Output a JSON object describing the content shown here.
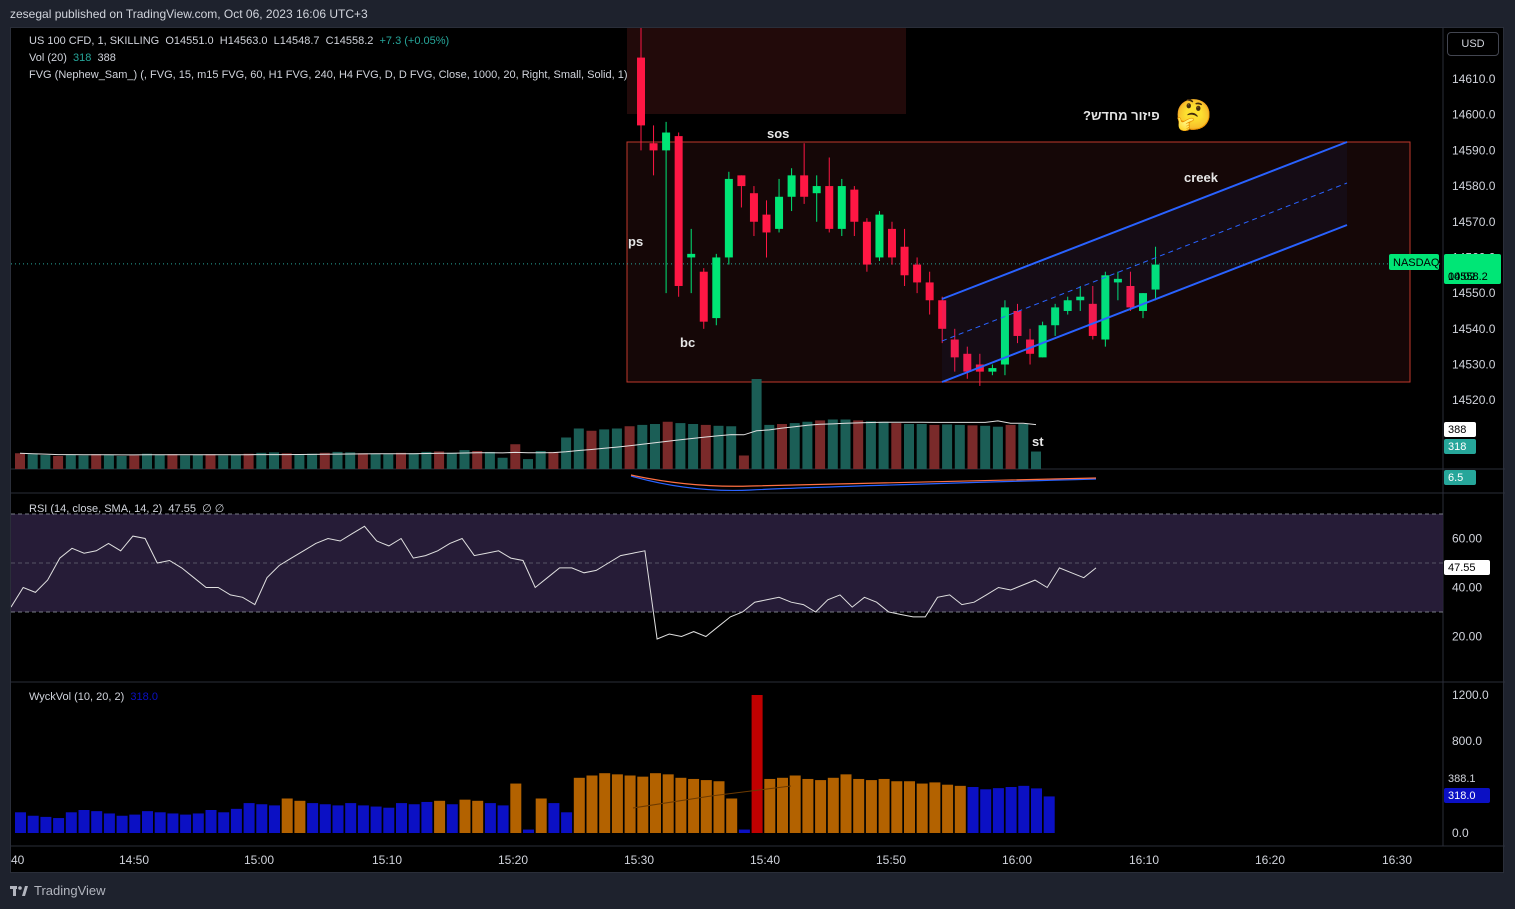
{
  "header": {
    "published": "zesegal published on TradingView.com, Oct 06, 2023 16:06 UTC+3",
    "currency_button": "USD"
  },
  "legend": {
    "symbol": "US 100 CFD, 1, SKILLING",
    "open": "O14551.0",
    "high": "H14563.0",
    "low": "L14548.7",
    "close": "C14558.2",
    "change": "+7.3 (+0.05%)",
    "vol_label": "Vol (20)",
    "vol_value_1": "318",
    "vol_value_2": "388",
    "fvg_label": "FVG (Nephew_Sam_) (, FVG, 15, m15 FVG, 60, H1 FVG, 240, H4 FVG, D, D FVG, Close, 1000, 20, Right, Small, Solid, 1)",
    "rsi_label": "RSI (14, close, SMA, 14, 2)",
    "rsi_value": "47.55",
    "rsi_extra": "∅  ∅",
    "wyck_label": "WyckVol (10, 20, 2)",
    "wyck_value": "318.0"
  },
  "annotations": {
    "ps": "ps",
    "bc": "bc",
    "sos": "sos",
    "st": "st",
    "creek": "creek",
    "hebrew": "פיזור מחדש?",
    "emoji": "🤔"
  },
  "price_tags": {
    "symbol_tag": "NASDAQ",
    "last_price": "14558.2",
    "countdown": "00:02",
    "vol_tag_1": "388",
    "vol_tag_2": "318",
    "osc_tag": "6.5",
    "rsi_tag": "47.55",
    "wyck_tag_1": "388.1",
    "wyck_tag_2": "318.0"
  },
  "colors": {
    "up": "#00e676",
    "down": "#ff1744",
    "vol_up": "#1b5e56",
    "vol_down": "#7a2a2a",
    "wyck_orange": "#b36200",
    "wyck_blue": "#0b10c4",
    "wyck_red": "#c00000",
    "channel": "#2962ff"
  },
  "footer": {
    "brand": "TradingView"
  },
  "chart_data": [
    {
      "type": "candlestick",
      "y_axis_ticks": [
        "14610.0",
        "14600.0",
        "14590.0",
        "14580.0",
        "14570.0",
        "14560.0",
        "14550.0",
        "14540.0",
        "14530.0",
        "14520.0"
      ],
      "ylim": [
        14517,
        14620
      ],
      "x_ticks": [
        "40",
        "14:50",
        "15:00",
        "15:10",
        "15:20",
        "15:30",
        "15:40",
        "15:50",
        "16:00",
        "16:10",
        "16:20",
        "16:30"
      ],
      "candles_from": "15:30",
      "candles": [
        [
          14616,
          14625,
          14590,
          14597
        ],
        [
          14592,
          14597,
          14583,
          14590
        ],
        [
          14590,
          14598,
          14550,
          14595
        ],
        [
          14594,
          14595,
          14549,
          14552
        ],
        [
          14560,
          14568,
          14550,
          14561
        ],
        [
          14556,
          14557,
          14540,
          14542
        ],
        [
          14543,
          14561,
          14541,
          14560
        ],
        [
          14560,
          14584,
          14558,
          14582
        ],
        [
          14583,
          14583,
          14574,
          14580
        ],
        [
          14578,
          14580,
          14566,
          14570
        ],
        [
          14572,
          14576,
          14560,
          14567
        ],
        [
          14568,
          14582,
          14567,
          14577
        ],
        [
          14577,
          14585,
          14573,
          14583
        ],
        [
          14583,
          14592,
          14575,
          14577
        ],
        [
          14578,
          14583,
          14570,
          14580
        ],
        [
          14580,
          14588,
          14567,
          14568
        ],
        [
          14568,
          14582,
          14566,
          14580
        ],
        [
          14579,
          14580,
          14566,
          14570
        ],
        [
          14570,
          14571,
          14556,
          14558
        ],
        [
          14560,
          14573,
          14559,
          14572
        ],
        [
          14568,
          14570,
          14558,
          14560
        ],
        [
          14563,
          14568,
          14552,
          14555
        ],
        [
          14558,
          14560,
          14550,
          14553
        ],
        [
          14553,
          14556,
          14544,
          14548
        ],
        [
          14548,
          14549,
          14536,
          14540
        ],
        [
          14537,
          14540,
          14528,
          14532
        ],
        [
          14533,
          14535,
          14526,
          14528
        ],
        [
          14530,
          14533,
          14524,
          14528
        ],
        [
          14528,
          14530,
          14527,
          14529
        ],
        [
          14530,
          14548,
          14527,
          14546
        ],
        [
          14545,
          14547,
          14536,
          14538
        ],
        [
          14537,
          14540,
          14530,
          14533
        ],
        [
          14532,
          14542,
          14532,
          14541
        ],
        [
          14541,
          14547,
          14538,
          14546
        ],
        [
          14545,
          14549,
          14544,
          14548
        ],
        [
          14548,
          14552,
          14545,
          14549
        ],
        [
          14547,
          14552,
          14537,
          14538
        ],
        [
          14537,
          14556,
          14535,
          14555
        ],
        [
          14553,
          14556,
          14548,
          14554
        ],
        [
          14552,
          14556,
          14545,
          14546
        ],
        [
          14545,
          14550,
          14543,
          14550
        ],
        [
          14551,
          14563,
          14548,
          14558
        ]
      ],
      "last_price": 14558.2
    },
    {
      "type": "bar",
      "name": "Vol (20)",
      "x_ticks": [
        "40",
        "14:50",
        "15:00",
        "15:10",
        "15:20",
        "15:30",
        "15:40",
        "15:50",
        "16:00",
        "16:10",
        "16:20",
        "16:30"
      ],
      "values": [
        350,
        330,
        310,
        290,
        320,
        300,
        330,
        310,
        290,
        300,
        340,
        320,
        330,
        300,
        310,
        330,
        300,
        320,
        340,
        360,
        370,
        350,
        330,
        340,
        360,
        380,
        370,
        350,
        340,
        330,
        360,
        350,
        380,
        390,
        360,
        420,
        400,
        380,
        250,
        550,
        220,
        400,
        380,
        700,
        900,
        850,
        880,
        900,
        950,
        980,
        1000,
        1050,
        1020,
        1000,
        980,
        960,
        950,
        300,
        2000,
        980,
        1000,
        1020,
        1050,
        1080,
        1100,
        1100,
        1080,
        1060,
        1050,
        1020,
        1000,
        1000,
        980,
        990,
        980,
        970,
        960,
        940,
        980,
        1000,
        388
      ],
      "sma_last": 318
    },
    {
      "type": "line",
      "name": "RSI (14, close, SMA, 14, 2)",
      "y_axis_ticks": [
        "60.00",
        "40.00",
        "20.00"
      ],
      "ylim": [
        10,
        70
      ],
      "bands": [
        30,
        70
      ],
      "mid": 50,
      "values": [
        32,
        40,
        38,
        43,
        52,
        56,
        54,
        55,
        58,
        55,
        61,
        60,
        50,
        51,
        48,
        44,
        40,
        40,
        37,
        36,
        33,
        44,
        49,
        52,
        55,
        58,
        60,
        59,
        62,
        65,
        59,
        57,
        60,
        52,
        53,
        55,
        58,
        60,
        53,
        54,
        55,
        52,
        51,
        40,
        44,
        48,
        48,
        46,
        47,
        50,
        53,
        54,
        55,
        19,
        21,
        20,
        22,
        20,
        24,
        28,
        30,
        34,
        35,
        36,
        34,
        33,
        30,
        35,
        37,
        32,
        36,
        34,
        30,
        29,
        28,
        28,
        36,
        37,
        33,
        34,
        37,
        40,
        39,
        41,
        43,
        40,
        48,
        46,
        44,
        48
      ],
      "last": 47.55
    },
    {
      "type": "bar",
      "name": "WyckVol (10, 20, 2)",
      "y_axis_ticks": [
        "1200.0",
        "800.0",
        "0.0"
      ],
      "ylim": [
        0,
        1300
      ],
      "values": [
        180,
        150,
        140,
        130,
        180,
        200,
        190,
        170,
        150,
        160,
        190,
        180,
        170,
        160,
        170,
        200,
        180,
        210,
        260,
        250,
        240,
        300,
        280,
        260,
        250,
        240,
        260,
        240,
        230,
        220,
        260,
        250,
        270,
        280,
        250,
        290,
        280,
        260,
        240,
        430,
        30,
        300,
        260,
        180,
        480,
        500,
        520,
        510,
        500,
        490,
        520,
        510,
        480,
        470,
        460,
        450,
        300,
        30,
        1200,
        470,
        480,
        500,
        470,
        460,
        480,
        510,
        470,
        460,
        470,
        450,
        450,
        430,
        440,
        420,
        410,
        400,
        380,
        390,
        400,
        410,
        388,
        318
      ],
      "last": 318.0
    }
  ]
}
